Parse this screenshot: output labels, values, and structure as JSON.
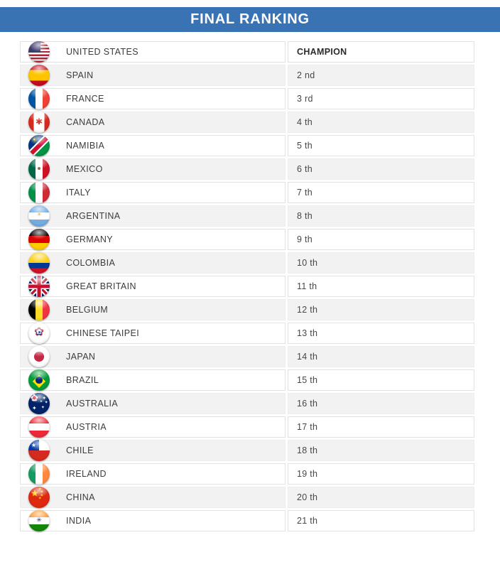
{
  "header": {
    "title": "FINAL RANKING"
  },
  "colors": {
    "banner_bg": "#3973B4",
    "banner_text": "#FFFFFF",
    "row_bg": "#FFFFFF",
    "row_alt_bg": "#F2F2F2",
    "cell_border": "#E2E2E2",
    "text": "#3C3C3C"
  },
  "table": {
    "rank_header": "CHAMPION",
    "rows": [
      {
        "country": "UNITED STATES",
        "rank": "CHAMPION",
        "flag_icon": "flag-united-states-icon",
        "flag_layers": [
          {
            "kind": "stripes",
            "dir": "h",
            "stops": [
              {
                "c": "#B22234"
              },
              {
                "c": "#FFFFFF"
              },
              {
                "c": "#B22234"
              },
              {
                "c": "#FFFFFF"
              },
              {
                "c": "#B22234"
              },
              {
                "c": "#FFFFFF"
              },
              {
                "c": "#B22234"
              },
              {
                "c": "#FFFFFF"
              },
              {
                "c": "#B22234"
              },
              {
                "c": "#FFFFFF"
              },
              {
                "c": "#B22234"
              },
              {
                "c": "#FFFFFF"
              },
              {
                "c": "#B22234"
              }
            ]
          },
          {
            "kind": "rect",
            "color": "#3C3B6E",
            "x": 0,
            "y": 0,
            "w": 55,
            "h": 54
          }
        ]
      },
      {
        "country": "SPAIN",
        "rank": "2 nd",
        "flag_icon": "flag-spain-icon",
        "flag_layers": [
          {
            "kind": "stripes",
            "dir": "h",
            "stops": [
              {
                "c": "#C60B1E"
              },
              {
                "c": "#FFC400",
                "w": 2
              },
              {
                "c": "#C60B1E"
              }
            ]
          }
        ]
      },
      {
        "country": "FRANCE",
        "rank": "3 rd",
        "flag_icon": "flag-france-icon",
        "flag_layers": [
          {
            "kind": "stripes",
            "dir": "v",
            "stops": [
              {
                "c": "#0055A4"
              },
              {
                "c": "#FFFFFF"
              },
              {
                "c": "#EF4135"
              }
            ]
          }
        ]
      },
      {
        "country": "CANADA",
        "rank": "4 th",
        "flag_icon": "flag-canada-icon",
        "flag_layers": [
          {
            "kind": "stripes",
            "dir": "v",
            "stops": [
              {
                "c": "#D52B1E"
              },
              {
                "c": "#FFFFFF",
                "w": 2
              },
              {
                "c": "#D52B1E"
              }
            ]
          },
          {
            "kind": "glyph",
            "char": "✱",
            "color": "#D52B1E",
            "size": 12,
            "x": 50,
            "y": 48
          }
        ]
      },
      {
        "country": "NAMIBIA",
        "rank": "5 th",
        "flag_icon": "flag-namibia-icon",
        "flag_layers": [
          {
            "kind": "stripes",
            "dir": "d",
            "stops": [
              {
                "c": "#003580",
                "w": 41
              },
              {
                "c": "#FFFFFF",
                "w": 5
              },
              {
                "c": "#D21034",
                "w": 16
              },
              {
                "c": "#FFFFFF",
                "w": 5
              },
              {
                "c": "#009543",
                "w": 41
              }
            ]
          },
          {
            "kind": "glyph",
            "char": "☀",
            "color": "#FFCE00",
            "size": 9,
            "x": 27,
            "y": 25
          }
        ]
      },
      {
        "country": "MEXICO",
        "rank": "6 th",
        "flag_icon": "flag-mexico-icon",
        "flag_layers": [
          {
            "kind": "stripes",
            "dir": "v",
            "stops": [
              {
                "c": "#006847"
              },
              {
                "c": "#FFFFFF"
              },
              {
                "c": "#CE1126"
              }
            ]
          },
          {
            "kind": "disc",
            "color": "#8C6239",
            "size": 16,
            "x": 50,
            "y": 47
          }
        ]
      },
      {
        "country": "ITALY",
        "rank": "7 th",
        "flag_icon": "flag-italy-icon",
        "flag_layers": [
          {
            "kind": "stripes",
            "dir": "v",
            "stops": [
              {
                "c": "#009246"
              },
              {
                "c": "#FFFFFF"
              },
              {
                "c": "#CE2B37"
              }
            ]
          }
        ]
      },
      {
        "country": "ARGENTINA",
        "rank": "8 th",
        "flag_icon": "flag-argentina-icon",
        "flag_layers": [
          {
            "kind": "stripes",
            "dir": "h",
            "stops": [
              {
                "c": "#74ACDF"
              },
              {
                "c": "#FFFFFF"
              },
              {
                "c": "#74ACDF"
              }
            ]
          },
          {
            "kind": "glyph",
            "char": "☀",
            "color": "#F6B40E",
            "size": 9,
            "x": 50,
            "y": 48
          }
        ]
      },
      {
        "country": "GERMANY",
        "rank": "9 th",
        "flag_icon": "flag-germany-icon",
        "flag_layers": [
          {
            "kind": "stripes",
            "dir": "h",
            "stops": [
              {
                "c": "#000000"
              },
              {
                "c": "#DD0000"
              },
              {
                "c": "#FFCE00"
              }
            ]
          }
        ]
      },
      {
        "country": "COLOMBIA",
        "rank": "10 th",
        "flag_icon": "flag-colombia-icon",
        "flag_layers": [
          {
            "kind": "stripes",
            "dir": "h",
            "stops": [
              {
                "c": "#FCD116",
                "w": 2
              },
              {
                "c": "#003893"
              },
              {
                "c": "#CE1126"
              }
            ]
          }
        ]
      },
      {
        "country": "GREAT BRITAIN",
        "rank": "11 th",
        "flag_icon": "flag-great-britain-icon",
        "flag_layers": [
          {
            "kind": "fill",
            "color": "#012169"
          },
          {
            "kind": "band",
            "angle": 45,
            "a": 41,
            "b": 59,
            "color": "#FFFFFF"
          },
          {
            "kind": "band",
            "angle": 135,
            "a": 41,
            "b": 59,
            "color": "#FFFFFF"
          },
          {
            "kind": "band",
            "angle": 45,
            "a": 46,
            "b": 54,
            "color": "#C8102E"
          },
          {
            "kind": "band",
            "angle": 135,
            "a": 46,
            "b": 54,
            "color": "#C8102E"
          },
          {
            "kind": "band",
            "angle": 0,
            "a": 36,
            "b": 64,
            "color": "#FFFFFF"
          },
          {
            "kind": "band",
            "angle": 90,
            "a": 36,
            "b": 64,
            "color": "#FFFFFF"
          },
          {
            "kind": "band",
            "angle": 0,
            "a": 42,
            "b": 58,
            "color": "#C8102E"
          },
          {
            "kind": "band",
            "angle": 90,
            "a": 42,
            "b": 58,
            "color": "#C8102E"
          }
        ]
      },
      {
        "country": "BELGIUM",
        "rank": "12 th",
        "flag_icon": "flag-belgium-icon",
        "flag_layers": [
          {
            "kind": "stripes",
            "dir": "v",
            "stops": [
              {
                "c": "#000000"
              },
              {
                "c": "#FDDA24"
              },
              {
                "c": "#EF3340"
              }
            ]
          }
        ]
      },
      {
        "country": "CHINESE TAIPEI",
        "rank": "13 th",
        "flag_icon": "flag-chinese-taipei-icon",
        "flag_layers": [
          {
            "kind": "fill",
            "color": "#FFFFFF"
          },
          {
            "kind": "glyph",
            "char": "✿",
            "color": "#D7282E",
            "size": 17,
            "x": 50,
            "y": 47
          },
          {
            "kind": "glyph",
            "char": "✿",
            "color": "#1E50A2",
            "size": 13,
            "x": 50,
            "y": 47
          },
          {
            "kind": "glyph",
            "char": "✿",
            "color": "#FFFFFF",
            "size": 10,
            "x": 50,
            "y": 47
          },
          {
            "kind": "disc",
            "color": "#1E50A2",
            "size": 10,
            "x": 50,
            "y": 45
          }
        ]
      },
      {
        "country": "JAPAN",
        "rank": "14 th",
        "flag_icon": "flag-japan-icon",
        "flag_layers": [
          {
            "kind": "fill",
            "color": "#FFFFFF"
          },
          {
            "kind": "disc",
            "color": "#C22A44",
            "size": 45,
            "x": 50,
            "y": 50
          }
        ]
      },
      {
        "country": "BRAZIL",
        "rank": "15 th",
        "flag_icon": "flag-brazil-icon",
        "flag_layers": [
          {
            "kind": "fill",
            "color": "#009B3A"
          },
          {
            "kind": "glyph",
            "char": "◆",
            "color": "#FEDF00",
            "size": 24,
            "x": 50,
            "y": 50
          },
          {
            "kind": "disc",
            "color": "#002776",
            "size": 32,
            "x": 50,
            "y": 50
          }
        ]
      },
      {
        "country": "AUSTRALIA",
        "rank": "16 th",
        "flag_icon": "flag-australia-icon",
        "flag_layers": [
          {
            "kind": "fill",
            "color": "#012169"
          },
          {
            "kind": "glyph",
            "char": "✖",
            "color": "#FFFFFF",
            "size": 12,
            "x": 28,
            "y": 26
          },
          {
            "kind": "glyph",
            "char": "✚",
            "color": "#FFFFFF",
            "size": 13,
            "x": 28,
            "y": 26
          },
          {
            "kind": "glyph",
            "char": "✖",
            "color": "#E4002B",
            "size": 7,
            "x": 28,
            "y": 26
          },
          {
            "kind": "glyph",
            "char": "✚",
            "color": "#E4002B",
            "size": 7,
            "x": 28,
            "y": 26
          },
          {
            "kind": "glyph",
            "char": "✦",
            "color": "#FFFFFF",
            "size": 7,
            "x": 74,
            "y": 26
          },
          {
            "kind": "glyph",
            "char": "✦",
            "color": "#FFFFFF",
            "size": 6,
            "x": 84,
            "y": 48
          },
          {
            "kind": "glyph",
            "char": "✦",
            "color": "#FFFFFF",
            "size": 6,
            "x": 68,
            "y": 70
          },
          {
            "kind": "glyph",
            "char": "✦",
            "color": "#FFFFFF",
            "size": 5,
            "x": 60,
            "y": 44
          },
          {
            "kind": "glyph",
            "char": "✦",
            "color": "#FFFFFF",
            "size": 8,
            "x": 28,
            "y": 72
          }
        ]
      },
      {
        "country": "AUSTRIA",
        "rank": "17 th",
        "flag_icon": "flag-austria-icon",
        "flag_layers": [
          {
            "kind": "stripes",
            "dir": "h",
            "stops": [
              {
                "c": "#ED2939"
              },
              {
                "c": "#FFFFFF"
              },
              {
                "c": "#ED2939"
              }
            ]
          }
        ]
      },
      {
        "country": "CHILE",
        "rank": "18 th",
        "flag_icon": "flag-chile-icon",
        "flag_layers": [
          {
            "kind": "stripes",
            "dir": "h",
            "stops": [
              {
                "c": "#FFFFFF"
              },
              {
                "c": "#D52B1E"
              }
            ]
          },
          {
            "kind": "rect",
            "color": "#0039A6",
            "x": 0,
            "y": 0,
            "w": 50,
            "h": 50
          },
          {
            "kind": "glyph",
            "char": "★",
            "color": "#FFFFFF",
            "size": 8,
            "x": 25,
            "y": 26
          }
        ]
      },
      {
        "country": "IRELAND",
        "rank": "19 th",
        "flag_icon": "flag-ireland-icon",
        "flag_layers": [
          {
            "kind": "stripes",
            "dir": "v",
            "stops": [
              {
                "c": "#169B62"
              },
              {
                "c": "#FFFFFF"
              },
              {
                "c": "#FF883E"
              }
            ]
          }
        ]
      },
      {
        "country": "CHINA",
        "rank": "20 th",
        "flag_icon": "flag-china-icon",
        "flag_layers": [
          {
            "kind": "fill",
            "color": "#DE2910"
          },
          {
            "kind": "glyph",
            "char": "★",
            "color": "#FFDE00",
            "size": 13,
            "x": 30,
            "y": 32
          },
          {
            "kind": "glyph",
            "char": "★",
            "color": "#FFDE00",
            "size": 5,
            "x": 54,
            "y": 13
          },
          {
            "kind": "glyph",
            "char": "★",
            "color": "#FFDE00",
            "size": 5,
            "x": 63,
            "y": 27
          },
          {
            "kind": "glyph",
            "char": "★",
            "color": "#FFDE00",
            "size": 5,
            "x": 63,
            "y": 43
          },
          {
            "kind": "glyph",
            "char": "★",
            "color": "#FFDE00",
            "size": 5,
            "x": 54,
            "y": 56
          }
        ]
      },
      {
        "country": "INDIA",
        "rank": "21 th",
        "flag_icon": "flag-india-icon",
        "flag_layers": [
          {
            "kind": "stripes",
            "dir": "h",
            "stops": [
              {
                "c": "#FF9933"
              },
              {
                "c": "#FFFFFF"
              },
              {
                "c": "#138808"
              }
            ]
          },
          {
            "kind": "glyph",
            "char": "✳",
            "color": "#06038D",
            "size": 9,
            "x": 50,
            "y": 49
          }
        ]
      }
    ]
  }
}
